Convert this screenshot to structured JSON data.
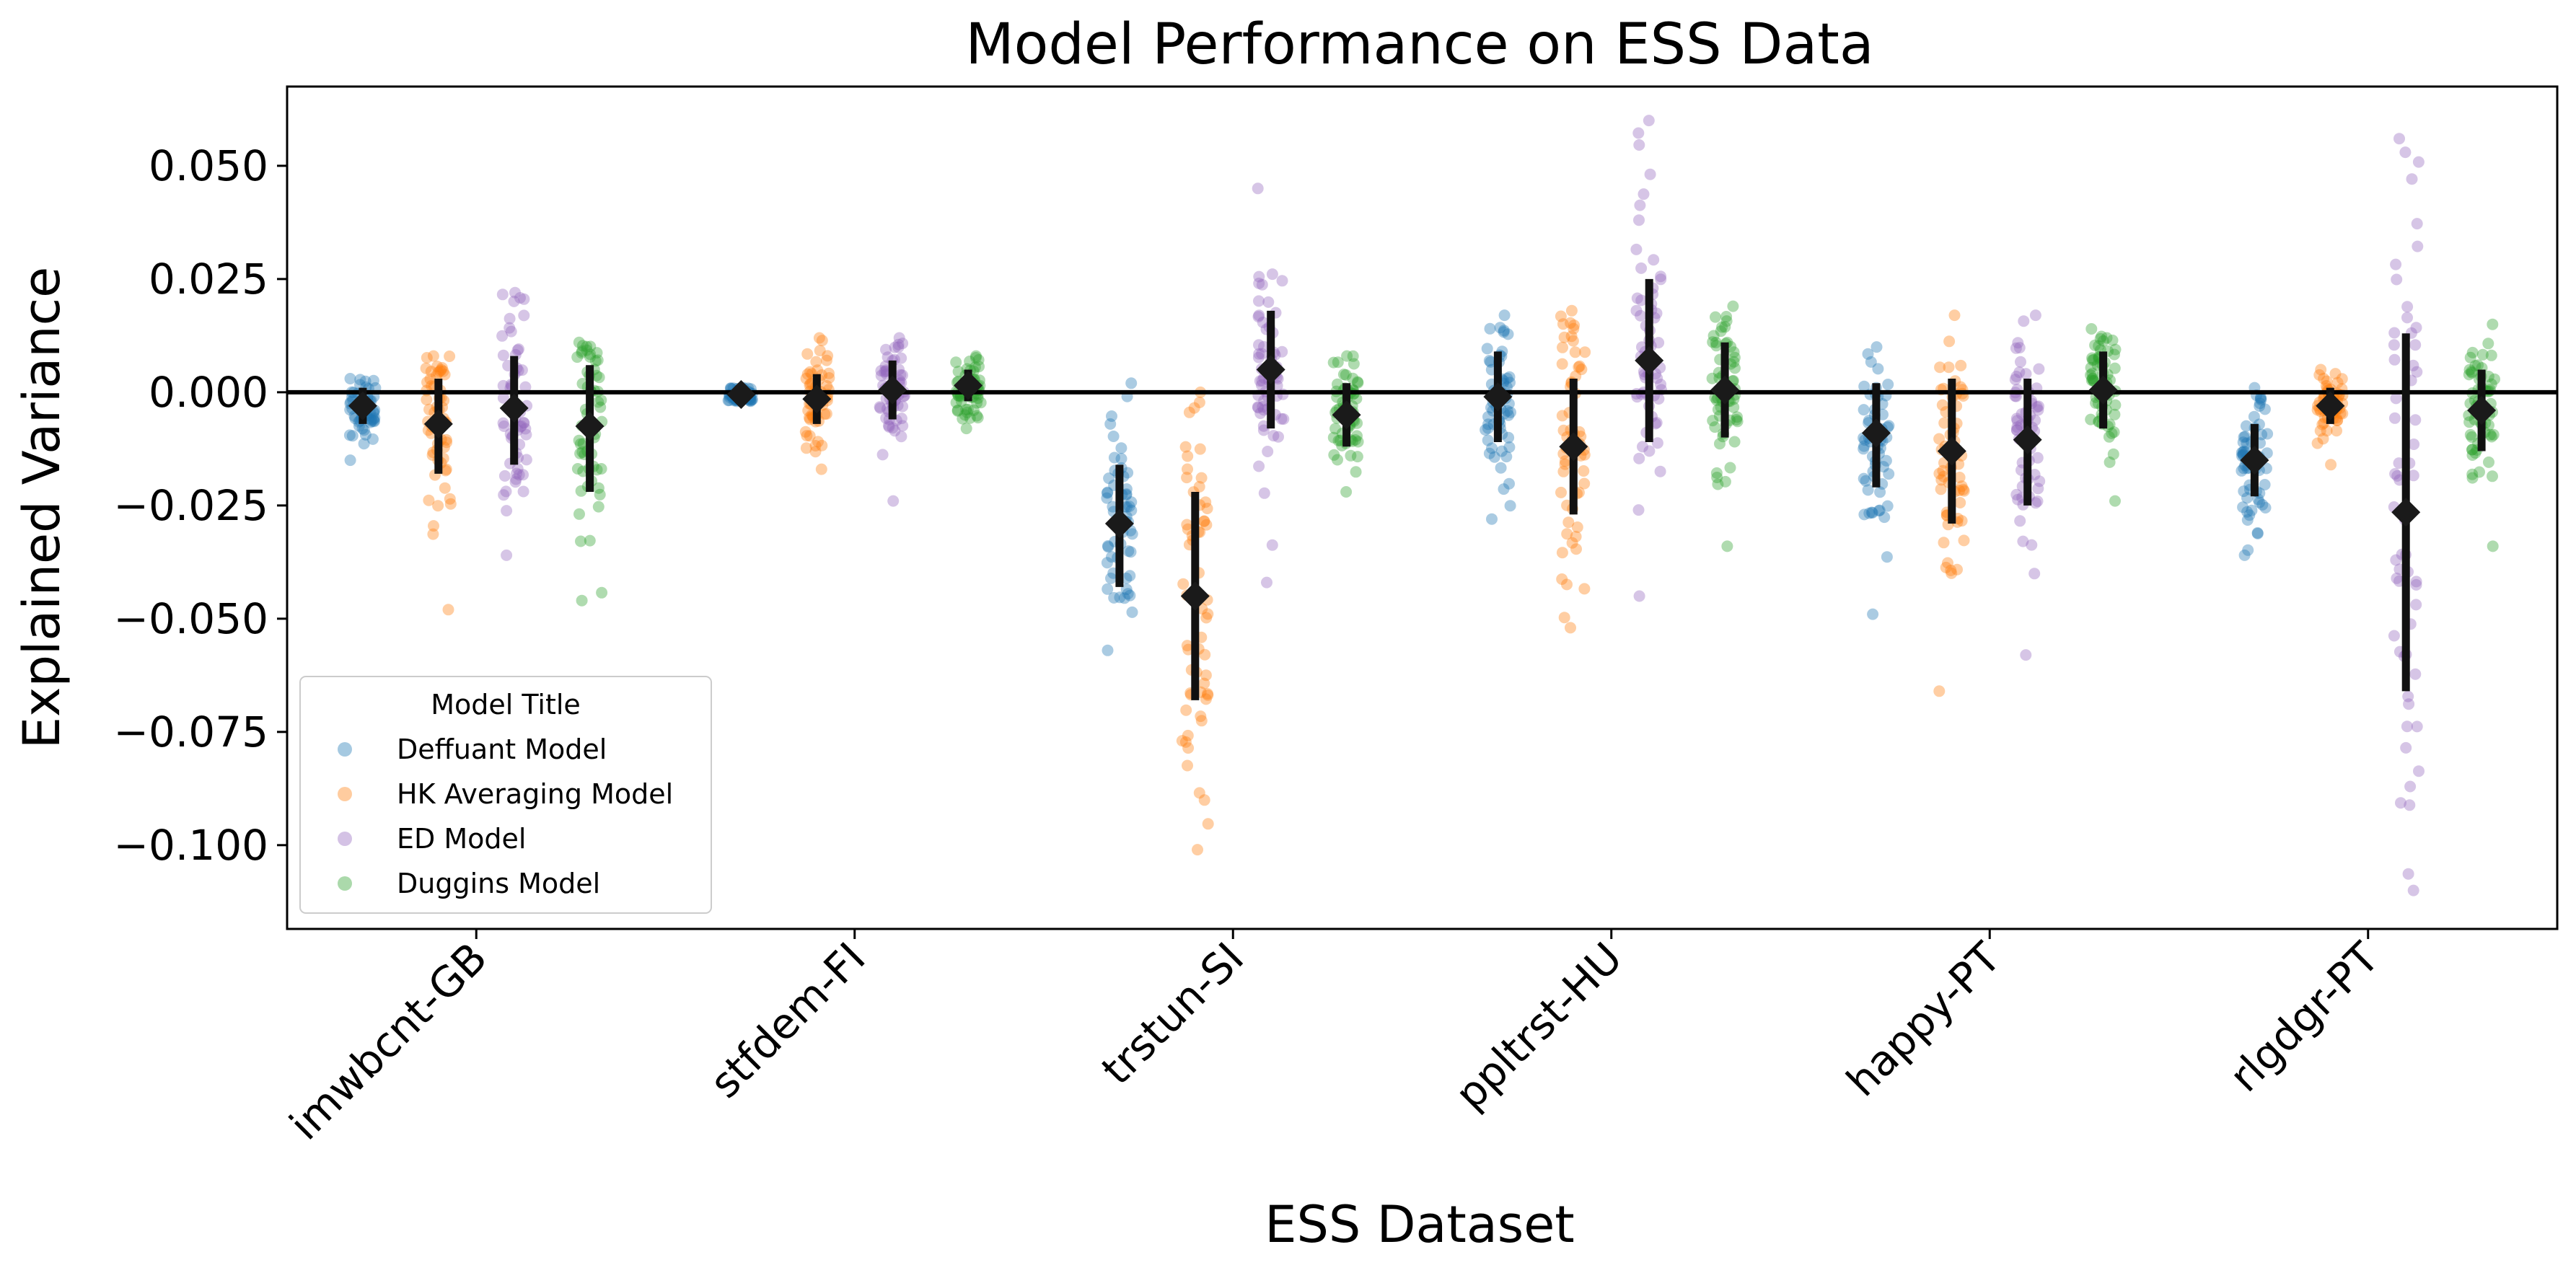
{
  "chart_data": {
    "type": "strip",
    "title": "Model Performance on ESS Data",
    "xlabel": "ESS Dataset",
    "ylabel": "Explained Variance",
    "ylim": [
      -0.1185,
      0.0675
    ],
    "yticks": [
      0.05,
      0.025,
      0.0,
      -0.025,
      -0.05,
      -0.075,
      -0.1
    ],
    "ytick_labels": [
      "0.050",
      "0.025",
      "0.000",
      "−0.025",
      "−0.050",
      "−0.075",
      "−0.100"
    ],
    "zero_line": 0.0,
    "categories": [
      "imwbcnt-GB",
      "stfdem-FI",
      "trstun-SI",
      "ppltrst-HU",
      "happy-PT",
      "rlgdgr-PT"
    ],
    "legend": {
      "title": "Model Title",
      "position": "lower-left"
    },
    "series": [
      {
        "name": "Deffuant Model",
        "color": "#1f77b4",
        "mean": [
          -0.003,
          -0.0005,
          -0.029,
          -0.001,
          -0.009,
          -0.015
        ],
        "ci_low": [
          -0.007,
          -0.002,
          -0.043,
          -0.011,
          -0.021,
          -0.023
        ],
        "ci_high": [
          0.001,
          0.001,
          -0.016,
          0.009,
          0.002,
          -0.007
        ],
        "point_min": [
          -0.015,
          -0.002,
          -0.057,
          -0.028,
          -0.049,
          -0.036
        ],
        "point_max": [
          0.003,
          0.001,
          0.002,
          0.017,
          0.01,
          0.001
        ]
      },
      {
        "name": "HK Averaging Model",
        "color": "#ff7f0e",
        "mean": [
          -0.007,
          -0.0015,
          -0.045,
          -0.012,
          -0.013,
          -0.003
        ],
        "ci_low": [
          -0.018,
          -0.007,
          -0.068,
          -0.027,
          -0.029,
          -0.007
        ],
        "ci_high": [
          0.003,
          0.004,
          -0.022,
          0.003,
          0.003,
          0.001
        ],
        "point_min": [
          -0.048,
          -0.017,
          -0.101,
          -0.052,
          -0.066,
          -0.016
        ],
        "point_max": [
          0.008,
          0.012,
          0.0,
          0.018,
          0.017,
          0.005
        ]
      },
      {
        "name": "ED Model",
        "color": "#9467bd",
        "mean": [
          -0.0035,
          0.0005,
          0.005,
          0.007,
          -0.0105,
          -0.0265
        ],
        "ci_low": [
          -0.016,
          -0.006,
          -0.008,
          -0.011,
          -0.025,
          -0.066
        ],
        "ci_high": [
          0.008,
          0.007,
          0.018,
          0.025,
          0.003,
          0.013
        ],
        "point_min": [
          -0.036,
          -0.024,
          -0.042,
          -0.045,
          -0.058,
          -0.11
        ],
        "point_max": [
          0.022,
          0.012,
          0.045,
          0.06,
          0.017,
          0.056
        ]
      },
      {
        "name": "Duggins Model",
        "color": "#2ca02c",
        "mean": [
          -0.0075,
          0.0015,
          -0.005,
          0.0005,
          0.0005,
          -0.004
        ],
        "ci_low": [
          -0.022,
          -0.002,
          -0.012,
          -0.01,
          -0.008,
          -0.013
        ],
        "ci_high": [
          0.006,
          0.005,
          0.002,
          0.011,
          0.009,
          0.005
        ],
        "point_min": [
          -0.046,
          -0.008,
          -0.022,
          -0.034,
          -0.024,
          -0.034
        ],
        "point_max": [
          0.011,
          0.008,
          0.008,
          0.019,
          0.014,
          0.015
        ]
      }
    ]
  }
}
